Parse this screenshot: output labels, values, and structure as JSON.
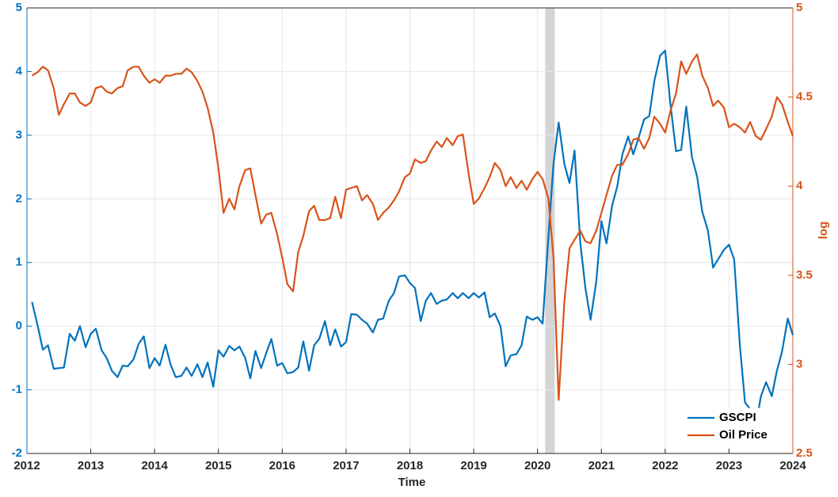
{
  "chart_data": {
    "type": "line",
    "xlabel": "Time",
    "y2label": "log",
    "x": [
      2012.08,
      2012.17,
      2012.25,
      2012.33,
      2012.42,
      2012.5,
      2012.58,
      2012.67,
      2012.75,
      2012.83,
      2012.92,
      2013,
      2013.08,
      2013.17,
      2013.25,
      2013.33,
      2013.42,
      2013.5,
      2013.58,
      2013.67,
      2013.75,
      2013.83,
      2013.92,
      2014,
      2014.08,
      2014.17,
      2014.25,
      2014.33,
      2014.42,
      2014.5,
      2014.58,
      2014.67,
      2014.75,
      2014.83,
      2014.92,
      2015,
      2015.08,
      2015.17,
      2015.25,
      2015.33,
      2015.42,
      2015.5,
      2015.58,
      2015.67,
      2015.75,
      2015.83,
      2015.92,
      2016,
      2016.08,
      2016.17,
      2016.25,
      2016.33,
      2016.42,
      2016.5,
      2016.58,
      2016.67,
      2016.75,
      2016.83,
      2016.92,
      2017,
      2017.08,
      2017.17,
      2017.25,
      2017.33,
      2017.42,
      2017.5,
      2017.58,
      2017.67,
      2017.75,
      2017.83,
      2017.92,
      2018,
      2018.08,
      2018.17,
      2018.25,
      2018.33,
      2018.42,
      2018.5,
      2018.58,
      2018.67,
      2018.75,
      2018.83,
      2018.92,
      2019,
      2019.08,
      2019.17,
      2019.25,
      2019.33,
      2019.42,
      2019.5,
      2019.58,
      2019.67,
      2019.75,
      2019.83,
      2019.92,
      2020,
      2020.08,
      2020.17,
      2020.25,
      2020.33,
      2020.42,
      2020.5,
      2020.58,
      2020.67,
      2020.75,
      2020.83,
      2020.92,
      2021,
      2021.08,
      2021.17,
      2021.25,
      2021.33,
      2021.42,
      2021.5,
      2021.58,
      2021.67,
      2021.75,
      2021.83,
      2021.92,
      2022,
      2022.08,
      2022.17,
      2022.25,
      2022.33,
      2022.42,
      2022.5,
      2022.58,
      2022.67,
      2022.75,
      2022.83,
      2022.92,
      2023,
      2023.08,
      2023.17,
      2023.25,
      2023.33,
      2023.42,
      2023.5,
      2023.58,
      2023.67,
      2023.75,
      2023.83,
      2023.92,
      2024
    ],
    "series": [
      {
        "name": "GSCPI",
        "color": "#0072BD",
        "values": [
          0.38,
          0.0,
          -0.37,
          -0.3,
          -0.67,
          -0.66,
          -0.65,
          -0.12,
          -0.23,
          0.0,
          -0.33,
          -0.12,
          -0.04,
          -0.38,
          -0.5,
          -0.7,
          -0.8,
          -0.62,
          -0.63,
          -0.52,
          -0.28,
          -0.16,
          -0.66,
          -0.5,
          -0.62,
          -0.29,
          -0.6,
          -0.8,
          -0.78,
          -0.65,
          -0.78,
          -0.6,
          -0.8,
          -0.57,
          -0.95,
          -0.38,
          -0.48,
          -0.31,
          -0.38,
          -0.32,
          -0.5,
          -0.82,
          -0.39,
          -0.66,
          -0.42,
          -0.2,
          -0.62,
          -0.58,
          -0.74,
          -0.72,
          -0.65,
          -0.24,
          -0.7,
          -0.3,
          -0.2,
          0.08,
          -0.3,
          -0.05,
          -0.32,
          -0.25,
          0.19,
          0.18,
          0.1,
          0.04,
          -0.1,
          0.1,
          0.12,
          0.4,
          0.52,
          0.78,
          0.8,
          0.68,
          0.6,
          0.08,
          0.4,
          0.52,
          0.35,
          0.4,
          0.42,
          0.52,
          0.44,
          0.52,
          0.44,
          0.52,
          0.45,
          0.53,
          0.14,
          0.2,
          0.0,
          -0.63,
          -0.46,
          -0.44,
          -0.3,
          0.15,
          0.1,
          0.14,
          0.04,
          1.4,
          2.55,
          3.2,
          2.55,
          2.25,
          2.76,
          1.3,
          0.6,
          0.1,
          0.7,
          1.65,
          1.3,
          1.9,
          2.2,
          2.7,
          2.98,
          2.7,
          2.95,
          3.25,
          3.3,
          3.85,
          4.25,
          4.33,
          3.5,
          2.75,
          2.77,
          3.45,
          2.65,
          2.35,
          1.8,
          1.5,
          0.92,
          1.05,
          1.2,
          1.28,
          1.05,
          -0.3,
          -1.2,
          -1.3,
          -1.55,
          -1.1,
          -0.88,
          -1.1,
          -0.7,
          -0.4,
          0.12,
          -0.14
        ]
      },
      {
        "name": "Oil Price",
        "color": "#D95319",
        "axis": "y2",
        "values": [
          4.62,
          4.64,
          4.67,
          4.65,
          4.55,
          4.4,
          4.46,
          4.52,
          4.52,
          4.47,
          4.45,
          4.47,
          4.55,
          4.56,
          4.53,
          4.52,
          4.55,
          4.56,
          4.65,
          4.67,
          4.67,
          4.62,
          4.58,
          4.6,
          4.58,
          4.62,
          4.62,
          4.63,
          4.63,
          4.66,
          4.64,
          4.59,
          4.53,
          4.44,
          4.3,
          4.1,
          3.85,
          3.93,
          3.87,
          4.0,
          4.09,
          4.1,
          3.95,
          3.79,
          3.84,
          3.85,
          3.73,
          3.6,
          3.45,
          3.41,
          3.63,
          3.72,
          3.86,
          3.89,
          3.81,
          3.81,
          3.82,
          3.94,
          3.82,
          3.98,
          3.99,
          4.0,
          3.92,
          3.95,
          3.9,
          3.81,
          3.85,
          3.88,
          3.92,
          3.97,
          4.05,
          4.07,
          4.15,
          4.13,
          4.14,
          4.2,
          4.25,
          4.22,
          4.27,
          4.23,
          4.28,
          4.29,
          4.07,
          3.9,
          3.93,
          3.99,
          4.05,
          4.13,
          4.09,
          4.0,
          4.05,
          3.99,
          4.03,
          3.98,
          4.04,
          4.08,
          4.04,
          3.93,
          3.6,
          2.8,
          3.35,
          3.65,
          3.7,
          3.75,
          3.69,
          3.68,
          3.75,
          3.85,
          3.95,
          4.06,
          4.12,
          4.12,
          4.18,
          4.26,
          4.27,
          4.21,
          4.27,
          4.39,
          4.35,
          4.3,
          4.42,
          4.52,
          4.7,
          4.63,
          4.7,
          4.74,
          4.62,
          4.55,
          4.45,
          4.48,
          4.44,
          4.33,
          4.35,
          4.33,
          4.3,
          4.36,
          4.28,
          4.26,
          4.32,
          4.39,
          4.5,
          4.46,
          4.36,
          4.28
        ]
      }
    ],
    "shaded_regions": [
      [
        2020.12,
        2020.27
      ]
    ],
    "xlim": [
      2012,
      2024
    ],
    "xticks": [
      2012,
      2013,
      2014,
      2015,
      2016,
      2017,
      2018,
      2019,
      2020,
      2021,
      2022,
      2023,
      2024
    ],
    "ylim": [
      -2,
      5
    ],
    "yticks": [
      -2,
      -1,
      0,
      1,
      2,
      3,
      4,
      5
    ],
    "y2lim": [
      2.5,
      5
    ],
    "y2ticks": [
      2.5,
      3,
      3.5,
      4,
      4.5,
      5
    ],
    "grid": true,
    "legend": "lower right"
  }
}
